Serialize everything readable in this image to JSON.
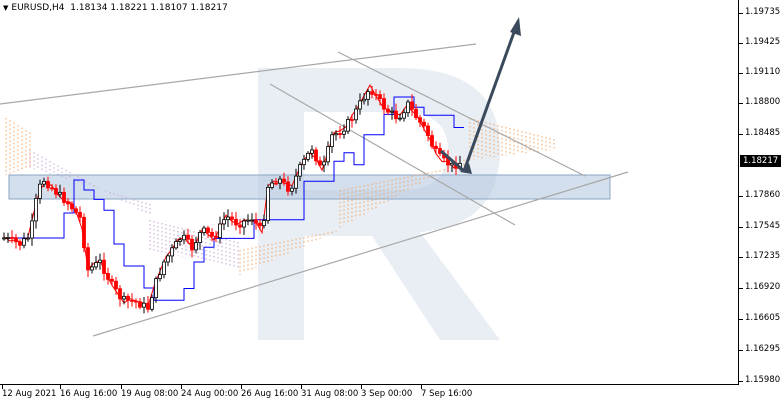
{
  "header": {
    "symbol": "EURUSD,H4",
    "ohlc": "1.18134 1.18221 1.18107 1.18217"
  },
  "price_scale": {
    "labels": [
      "1.19735",
      "1.19425",
      "1.19110",
      "1.18800",
      "1.18485",
      "1.17860",
      "1.17545",
      "1.17235",
      "1.16920",
      "1.16605",
      "1.16295",
      "1.15980"
    ],
    "current": "1.18217"
  },
  "time_scale": {
    "labels": [
      "12 Aug 2021",
      "16 Aug 16:00",
      "19 Aug 08:00",
      "24 Aug 00:00",
      "26 Aug 16:00",
      "31 Aug 08:00",
      "3 Sep 00:00",
      "7 Sep 16:00"
    ]
  },
  "colors": {
    "tenkan": "#ff0000",
    "kijun": "#0000ff",
    "cloud_bull": "#f4a460",
    "cloud_bear": "#c8a0d8",
    "channel": "#a0a0a0",
    "support_zone": "#b0c4de",
    "arrow": "#3a4a5c",
    "watermark": "#e8edf3",
    "candle_bull": "#000000",
    "candle_bear": "#ff0000"
  },
  "icons": {
    "header_triangle": "triangle-down-icon",
    "forecast_arrow": "arrow-up-icon",
    "watermark": "broker-logo"
  }
}
